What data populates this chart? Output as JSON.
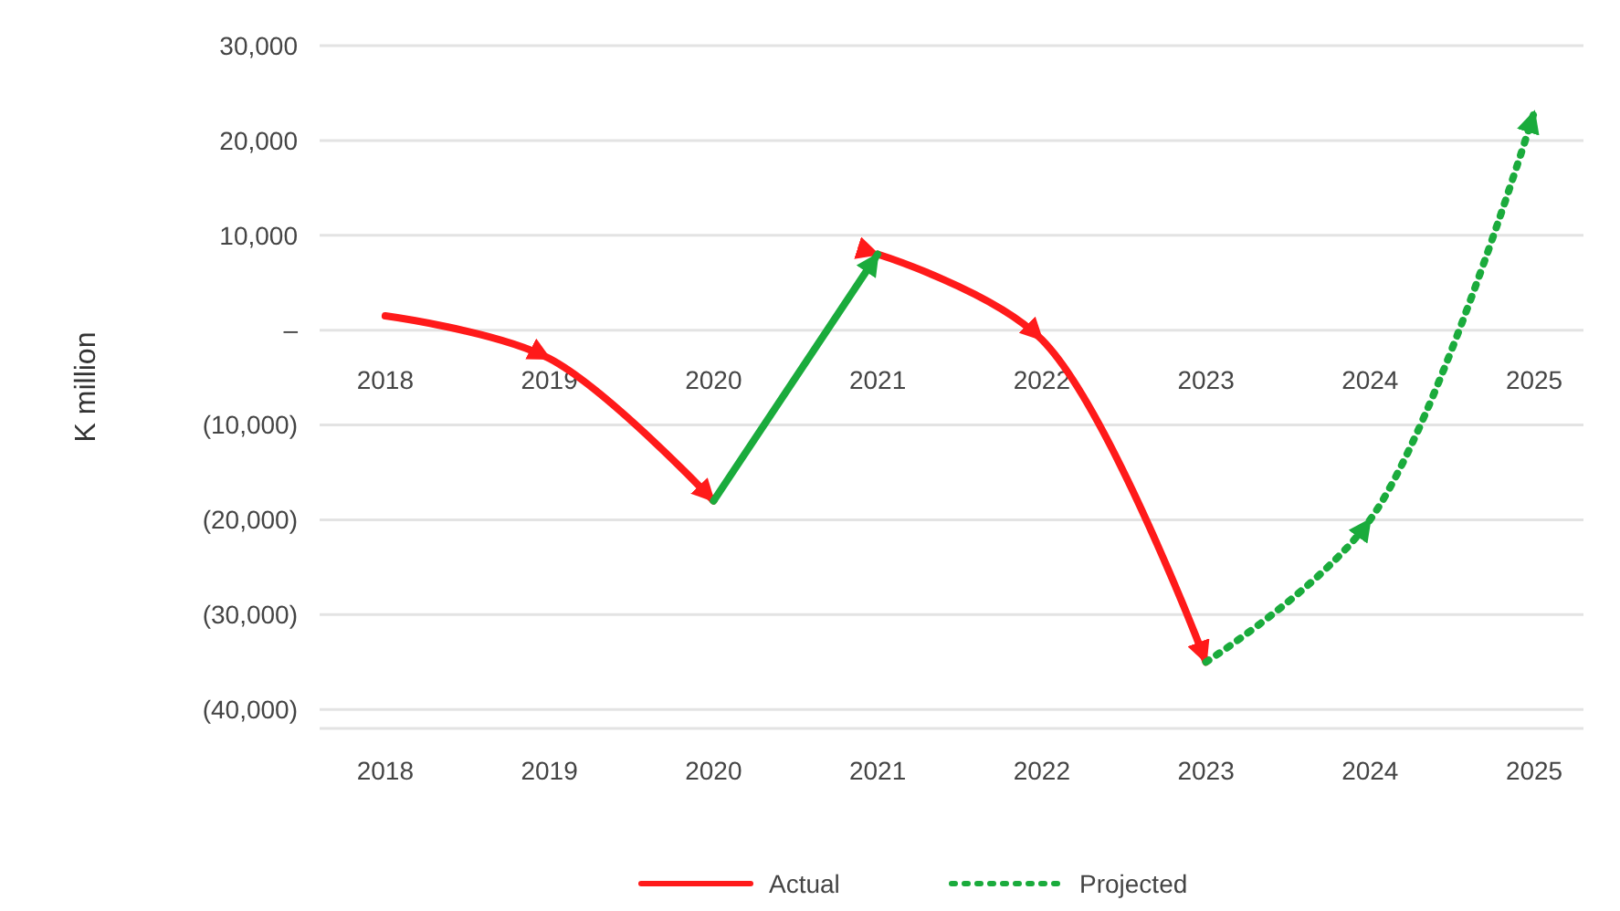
{
  "chart_data": {
    "type": "line",
    "ylabel": "K million",
    "xlim": [
      2017.6,
      2025.3
    ],
    "xticks": [
      2018,
      2019,
      2020,
      2021,
      2022,
      2023,
      2024,
      2025
    ],
    "ylim": [
      -42000,
      30000
    ],
    "x2lim": [
      2017.6,
      2025.3
    ],
    "x2ticks": [
      2018,
      2019,
      2020,
      2021,
      2022,
      2023,
      2024,
      2025
    ],
    "yticks": [
      {
        "value": 30000,
        "label": "30,000"
      },
      {
        "value": 20000,
        "label": "20,000"
      },
      {
        "value": 10000,
        "label": "10,000"
      },
      {
        "value": 0,
        "label": "–"
      },
      {
        "value": -10000,
        "label": "(10,000)"
      },
      {
        "value": -20000,
        "label": "(20,000)"
      },
      {
        "value": -30000,
        "label": "(30,000)"
      },
      {
        "value": -40000,
        "label": "(40,000)"
      }
    ],
    "grid": "y",
    "legend": "bottom",
    "marker": "none",
    "series": [
      {
        "name": "Actual",
        "color": "#ff1a1a",
        "line_style": "solid",
        "x": [
          2018,
          2019,
          2020,
          2020.5,
          2021,
          2022,
          2023
        ],
        "values": [
          1500,
          -3000,
          -18000,
          null,
          8000,
          -1000,
          -35000
        ]
      },
      {
        "color": "#1aab3c",
        "line_style": "solid",
        "x": [
          2020,
          2021
        ],
        "values": [
          -18000,
          8000
        ]
      },
      {
        "name": "Projected",
        "color": "#1aab3c",
        "line_style": "dotted",
        "x": [
          2023,
          2024,
          2025
        ],
        "values": [
          -35000,
          -20000,
          23000
        ]
      }
    ]
  }
}
